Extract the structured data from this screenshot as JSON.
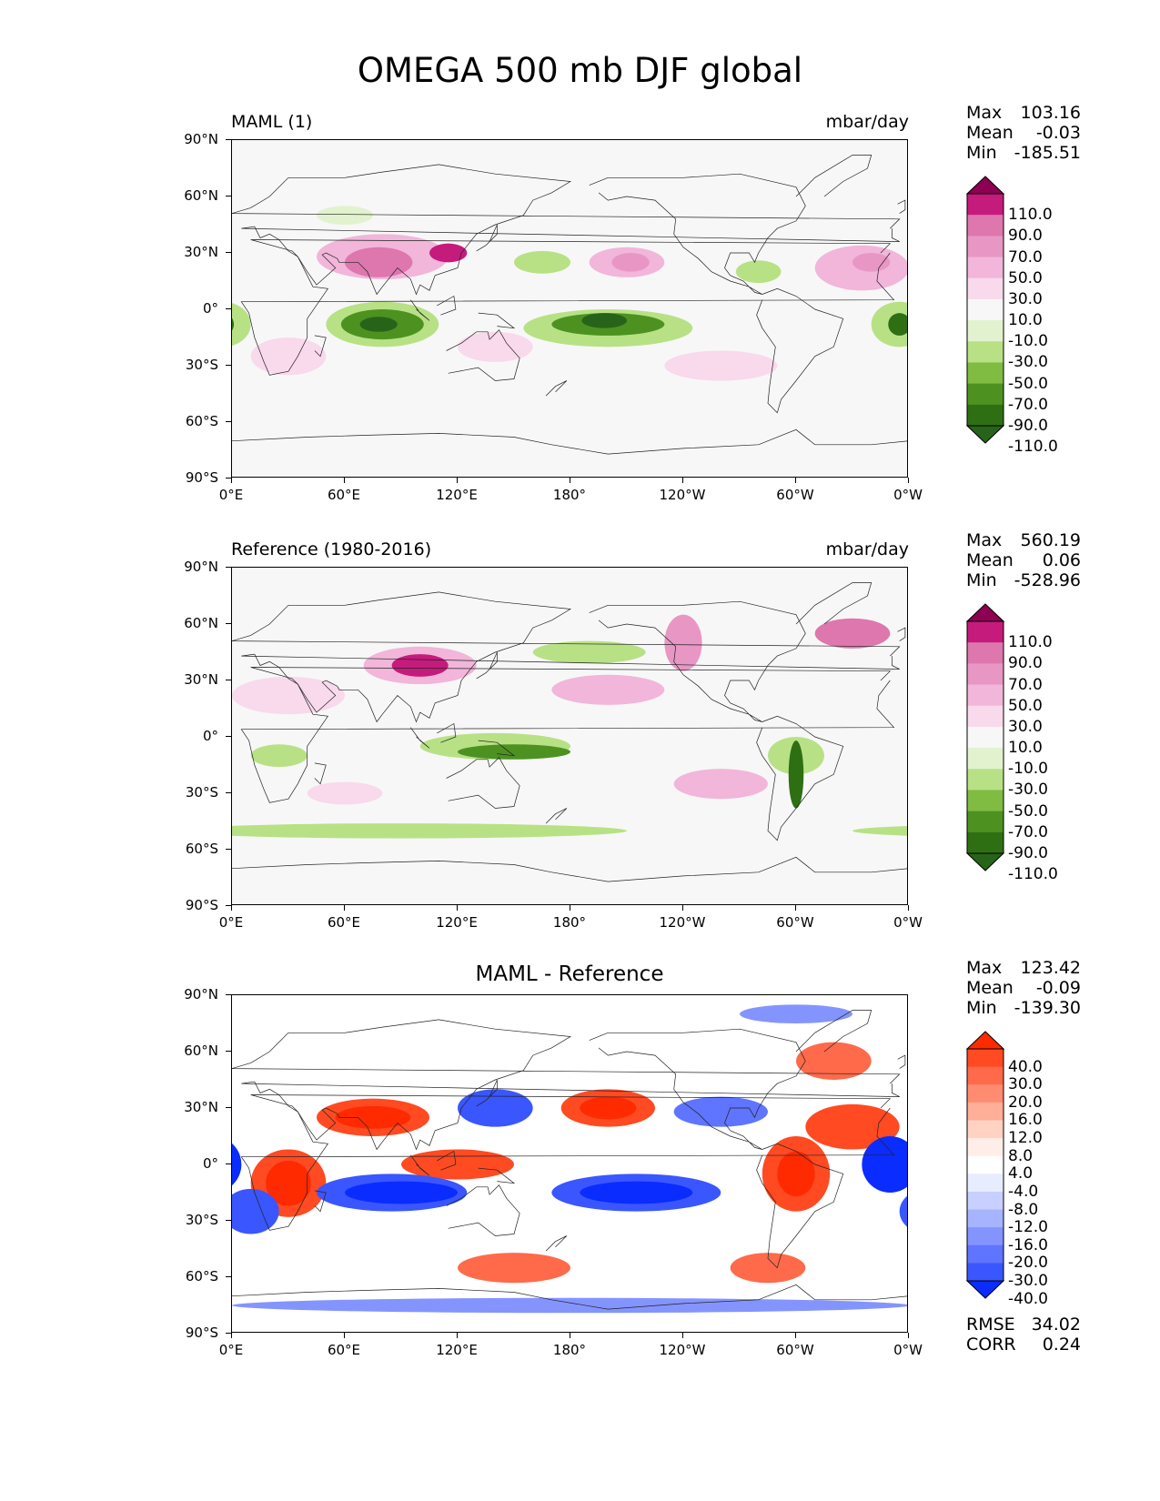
{
  "title": "OMEGA 500 mb DJF global",
  "lat_ticks": [
    "90°N",
    "60°N",
    "30°N",
    "0°",
    "30°S",
    "60°S",
    "90°S"
  ],
  "lon_ticks": [
    "0°E",
    "60°E",
    "120°E",
    "180°",
    "120°W",
    "60°W",
    "0°W"
  ],
  "panels": [
    {
      "left_title": "MAML (1)",
      "right_title": "mbar/day",
      "center_title": "",
      "stats": {
        "max_label": "Max",
        "max": "103.16",
        "mean_label": "Mean",
        "mean": "-0.03",
        "min_label": "Min",
        "min": "-185.51"
      },
      "colorbar": [
        "110.0",
        "90.0",
        "70.0",
        "50.0",
        "30.0",
        "10.0",
        "-10.0",
        "-30.0",
        "-50.0",
        "-70.0",
        "-90.0",
        "-110.0"
      ]
    },
    {
      "left_title": "Reference (1980-2016)",
      "right_title": "mbar/day",
      "center_title": "",
      "stats": {
        "max_label": "Max",
        "max": "560.19",
        "mean_label": "Mean",
        "mean": "0.06",
        "min_label": "Min",
        "min": "-528.96"
      },
      "colorbar": [
        "110.0",
        "90.0",
        "70.0",
        "50.0",
        "30.0",
        "10.0",
        "-10.0",
        "-30.0",
        "-50.0",
        "-70.0",
        "-90.0",
        "-110.0"
      ]
    },
    {
      "left_title": "",
      "right_title": "",
      "center_title": "MAML - Reference",
      "stats": {
        "max_label": "Max",
        "max": "123.42",
        "mean_label": "Mean",
        "mean": "-0.09",
        "min_label": "Min",
        "min": "-139.30"
      },
      "colorbar": [
        "40.0",
        "30.0",
        "20.0",
        "16.0",
        "12.0",
        "8.0",
        "4.0",
        "-4.0",
        "-8.0",
        "-12.0",
        "-16.0",
        "-20.0",
        "-30.0",
        "-40.0"
      ],
      "rmse_label": "RMSE",
      "rmse": "34.02",
      "corr_label": "CORR",
      "corr": "0.24"
    }
  ],
  "colors": {
    "omega_scale": [
      "#8e0152",
      "#c51b7d",
      "#de77ae",
      "#e897c4",
      "#f1b6da",
      "#f9d9ec",
      "#f7f7f7",
      "#e2f2cf",
      "#b8e186",
      "#7fbc41",
      "#4d9221",
      "#2f6f14",
      "#276419"
    ],
    "diff_scale": [
      "#ff2a00",
      "#ff4a22",
      "#ff6a4a",
      "#ff8c70",
      "#ffae98",
      "#ffd2c4",
      "#ffeee8",
      "#ffffff",
      "#e8ecff",
      "#c8d0ff",
      "#a6b3ff",
      "#8494ff",
      "#5f74ff",
      "#3a56ff",
      "#0a2cff"
    ]
  }
}
